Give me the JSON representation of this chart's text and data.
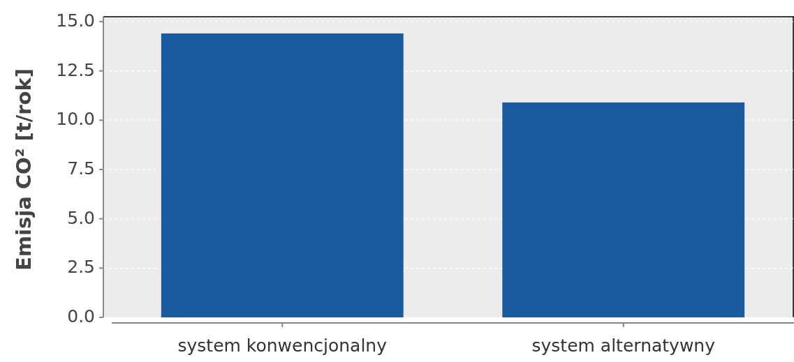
{
  "chart_data": {
    "type": "bar",
    "ylabel": "Emisja CO² [t/rok]",
    "categories": [
      "system konwencjonalny",
      "system alternatywny"
    ],
    "values": [
      14.4,
      10.9
    ],
    "color": "#1a5a9e",
    "ylim": [
      0,
      15
    ],
    "yticks": [
      {
        "value": 0,
        "label": "0.0"
      },
      {
        "value": 2.5,
        "label": "2.5"
      },
      {
        "value": 5,
        "label": "5.0"
      },
      {
        "value": 7.5,
        "label": "7.5"
      },
      {
        "value": 10,
        "label": "10.0"
      },
      {
        "value": 12.5,
        "label": "12.5"
      },
      {
        "value": 15,
        "label": "15.0"
      }
    ],
    "grid": "y"
  }
}
